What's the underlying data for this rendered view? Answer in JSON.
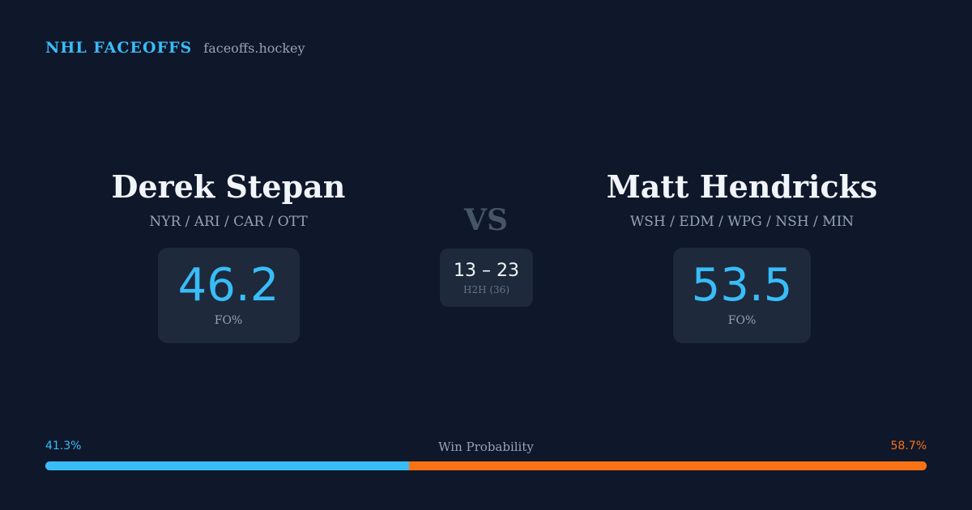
{
  "brand": {
    "name": "NHL FACEOFFS",
    "domain": "faceoffs.hockey"
  },
  "player_left": {
    "name": "Derek Stepan",
    "teams": "NYR / ARI / CAR / OTT",
    "stat_value": "46.2",
    "stat_label": "FO%"
  },
  "player_right": {
    "name": "Matt Hendricks",
    "teams": "WSH / EDM / WPG / NSH / MIN",
    "stat_value": "53.5",
    "stat_label": "FO%"
  },
  "versus": {
    "label": "VS",
    "h2h_score": "13 – 23",
    "h2h_label": "H2H (36)"
  },
  "win_probability": {
    "title": "Win Probability",
    "left_label": "41.3%",
    "right_label": "58.7%",
    "left_value": 41.3,
    "right_value": 58.7,
    "colors": {
      "left": "#38bdf8",
      "right": "#f97316"
    }
  }
}
